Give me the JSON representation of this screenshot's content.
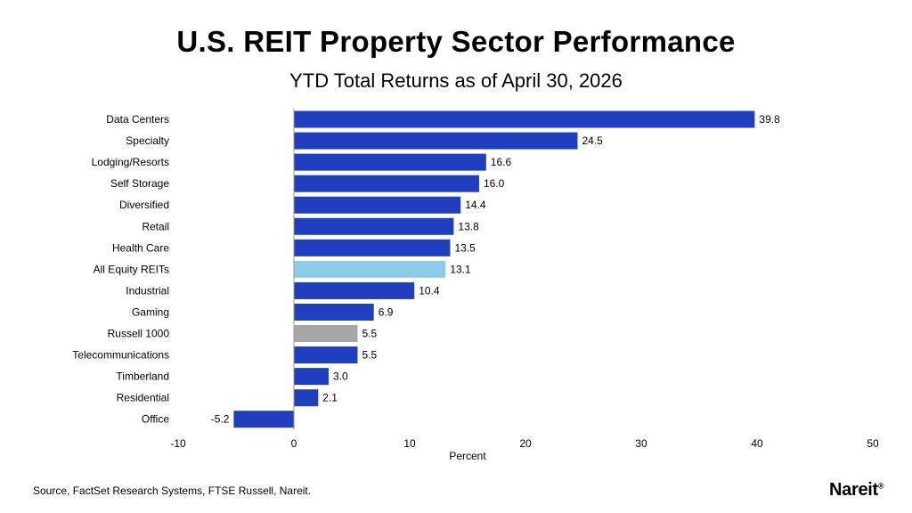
{
  "header": {
    "title": "U.S. REIT Property Sector Performance",
    "subtitle": "YTD Total Returns as of April 30, 2026"
  },
  "footer": {
    "source": "Source, FactSet Research Systems, FTSE Russell, Nareit.",
    "logo_text": "Nareit",
    "logo_mark": "®"
  },
  "colors": {
    "reit": "#1f3fbf",
    "all_equity": "#8ecbea",
    "benchmark": "#a6a6a6"
  },
  "chart_data": {
    "type": "bar",
    "orientation": "horizontal",
    "title": "U.S. REIT Property Sector Performance",
    "subtitle": "YTD Total Returns as of April 30, 2026",
    "xlabel": "Percent",
    "ylabel": "",
    "xlim": [
      -10,
      50
    ],
    "xticks": [
      -10,
      0,
      10,
      20,
      30,
      40,
      50
    ],
    "grid": false,
    "categories": [
      "Data Centers",
      "Specialty",
      "Lodging/Resorts",
      "Self Storage",
      "Diversified",
      "Retail",
      "Health Care",
      "All Equity REITs",
      "Industrial",
      "Gaming",
      "Russell 1000",
      "Telecommunications",
      "Timberland",
      "Residential",
      "Office"
    ],
    "values": [
      39.8,
      24.5,
      16.6,
      16.0,
      14.4,
      13.8,
      13.5,
      13.1,
      10.4,
      6.9,
      5.5,
      5.5,
      3.0,
      2.1,
      -5.2
    ],
    "value_labels": [
      "39.8",
      "24.5",
      "16.6",
      "16.0",
      "14.4",
      "13.8",
      "13.5",
      "13.1",
      "10.4",
      "6.9",
      "5.5",
      "5.5",
      "3.0",
      "2.1",
      "-5.2"
    ],
    "bar_groups": [
      "reit",
      "reit",
      "reit",
      "reit",
      "reit",
      "reit",
      "reit",
      "all_equity",
      "reit",
      "reit",
      "benchmark",
      "reit",
      "reit",
      "reit",
      "reit"
    ]
  }
}
